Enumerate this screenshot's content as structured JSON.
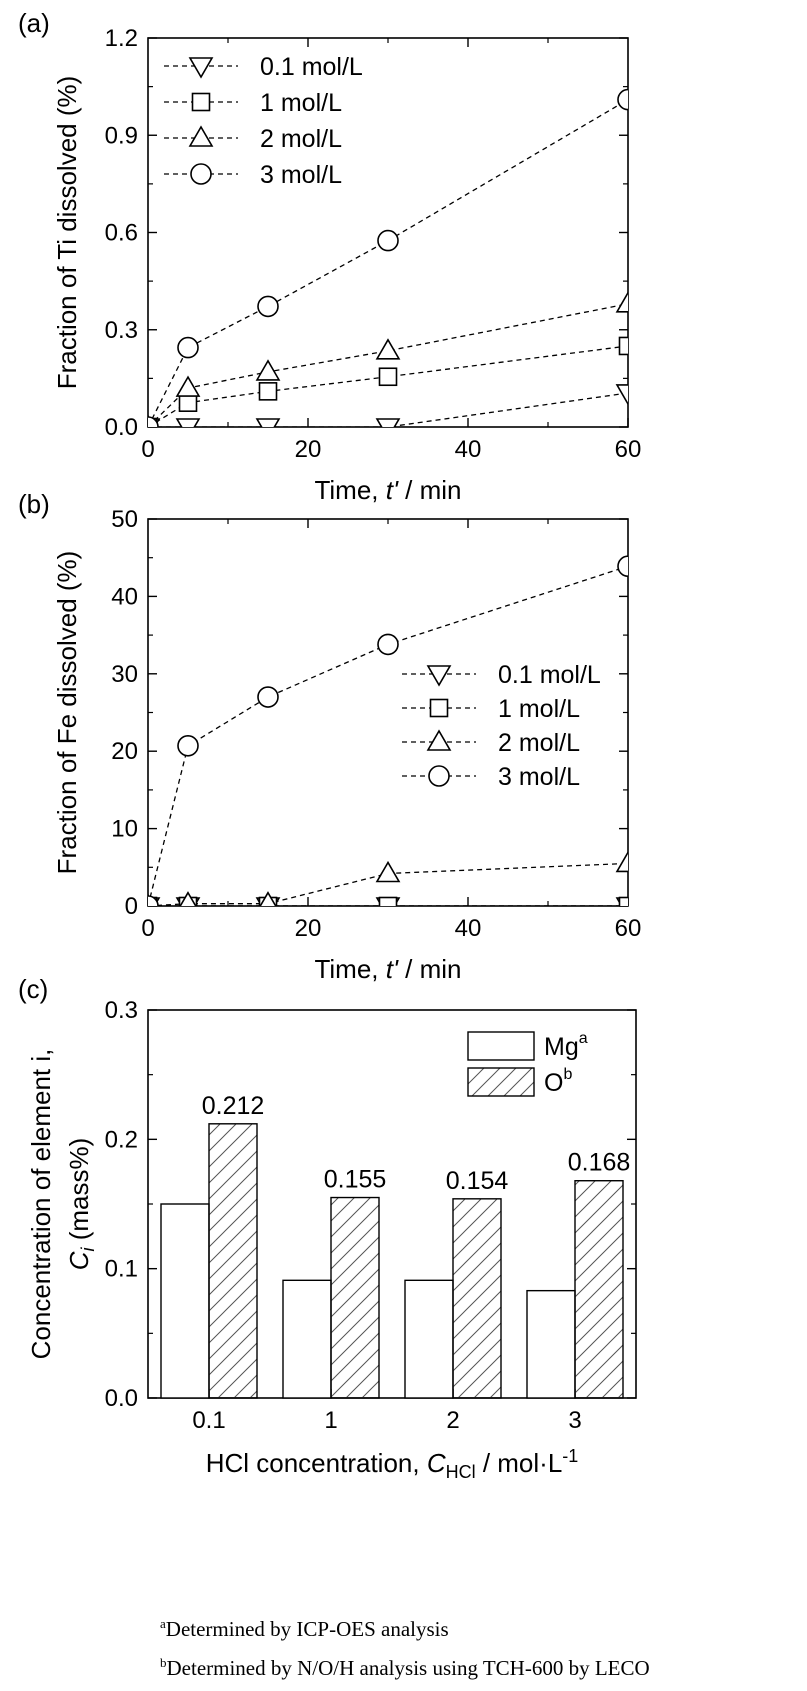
{
  "chart_data": [
    {
      "panel_label": "(a)",
      "type": "line",
      "xlabel_prefix": "Time, ",
      "xlabel_var": "t'",
      "xlabel_suffix": " / min",
      "ylabel": "Fraction of Ti dissolved (%)",
      "xlim": [
        0,
        60
      ],
      "ylim": [
        0,
        1.2
      ],
      "xticks": [
        "0",
        "20",
        "40",
        "60"
      ],
      "yticks": [
        "0.0",
        "0.3",
        "0.6",
        "0.9",
        "1.2"
      ],
      "legend_position": "top-left",
      "x": [
        0,
        5,
        15,
        30,
        60
      ],
      "series": [
        {
          "name": "0.1 mol/L",
          "marker": "triangle-down",
          "values": [
            0.0,
            0.0,
            0.0,
            0.0,
            0.105
          ]
        },
        {
          "name": "1 mol/L",
          "marker": "square",
          "values": [
            0.0,
            0.075,
            0.11,
            0.155,
            0.25
          ]
        },
        {
          "name": "2 mol/L",
          "marker": "triangle-up",
          "values": [
            0.0,
            0.12,
            0.17,
            0.235,
            0.38
          ]
        },
        {
          "name": "3 mol/L",
          "marker": "circle",
          "values": [
            0.0,
            0.245,
            0.372,
            0.575,
            1.01
          ]
        }
      ]
    },
    {
      "panel_label": "(b)",
      "type": "line",
      "xlabel_prefix": "Time, ",
      "xlabel_var": "t'",
      "xlabel_suffix": " / min",
      "ylabel": "Fraction of Fe dissolved (%)",
      "xlim": [
        0,
        60
      ],
      "ylim": [
        0,
        50
      ],
      "xticks": [
        "0",
        "20",
        "40",
        "60"
      ],
      "yticks": [
        "0",
        "10",
        "20",
        "30",
        "40",
        "50"
      ],
      "legend_position": "center-right",
      "x": [
        0,
        5,
        15,
        30,
        60
      ],
      "series": [
        {
          "name": "0.1 mol/L",
          "marker": "triangle-down",
          "values": [
            0.0,
            0.0,
            0.0,
            0.0,
            0.0
          ]
        },
        {
          "name": "1 mol/L",
          "marker": "square",
          "values": [
            0.0,
            0.0,
            0.0,
            0.0,
            0.0
          ]
        },
        {
          "name": "2 mol/L",
          "marker": "triangle-up",
          "values": [
            0.0,
            0.3,
            0.3,
            4.2,
            5.5
          ]
        },
        {
          "name": "3 mol/L",
          "marker": "circle",
          "values": [
            0.0,
            20.7,
            27.0,
            33.8,
            43.9
          ]
        }
      ]
    },
    {
      "panel_label": "(c)",
      "type": "bar",
      "xlabel_prefix": "HCl concentration, ",
      "xlabel_var": "C",
      "xlabel_sub": "HCl",
      "xlabel_suffix": " / mol·L",
      "xlabel_sup": "-1",
      "ylabel_line1": "Concentration of element i,",
      "ylabel_var": "C",
      "ylabel_sub": "i",
      "ylabel_suffix": " (mass%)",
      "ylim": [
        0,
        0.3
      ],
      "yticks": [
        "0.0",
        "0.1",
        "0.2",
        "0.3"
      ],
      "categories": [
        "0.1",
        "1",
        "2",
        "3"
      ],
      "legend_position": "top-right",
      "series": [
        {
          "name": "Mg",
          "superscript": "a",
          "pattern": "none",
          "values": [
            0.15,
            0.091,
            0.091,
            0.083
          ]
        },
        {
          "name": "O",
          "superscript": "b",
          "pattern": "hatched",
          "values": [
            0.212,
            0.155,
            0.154,
            0.168
          ]
        }
      ],
      "data_labels": [
        "0.212",
        "0.155",
        "0.154",
        "0.168"
      ]
    }
  ],
  "footnotes": [
    {
      "mark": "a",
      "text": "Determined by ICP-OES analysis"
    },
    {
      "mark": "b",
      "text": "Determined by N/O/H analysis using TCH-600 by LECO"
    }
  ]
}
